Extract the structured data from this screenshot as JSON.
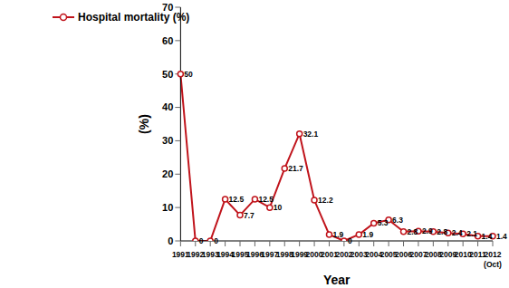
{
  "chart_data": {
    "type": "line",
    "x_label": "Year",
    "y_label": "(%)",
    "categories": [
      "1991",
      "1992",
      "1993",
      "1994",
      "1995",
      "1996",
      "1997",
      "1998",
      "1999",
      "2000",
      "2001",
      "2002",
      "2003",
      "2004",
      "2005",
      "2006",
      "2007",
      "2008",
      "2009",
      "2010",
      "2011",
      "2012 (Oct)"
    ],
    "series": [
      {
        "name": "Hospital mortality (%)",
        "color": "#c0141c",
        "marker": "circle",
        "values": [
          50,
          0,
          0,
          12.5,
          7.7,
          12.5,
          10,
          21.7,
          32.1,
          12.2,
          1.9,
          0,
          1.9,
          5.3,
          6.3,
          2.8,
          2.9,
          2.8,
          2.4,
          2.1,
          1.4,
          1.4
        ]
      }
    ],
    "ylim": [
      0,
      70
    ],
    "yticks": [
      0,
      10,
      20,
      30,
      40,
      50,
      60,
      70
    ],
    "grid": false,
    "legend": "top-left",
    "data_labels": true
  }
}
